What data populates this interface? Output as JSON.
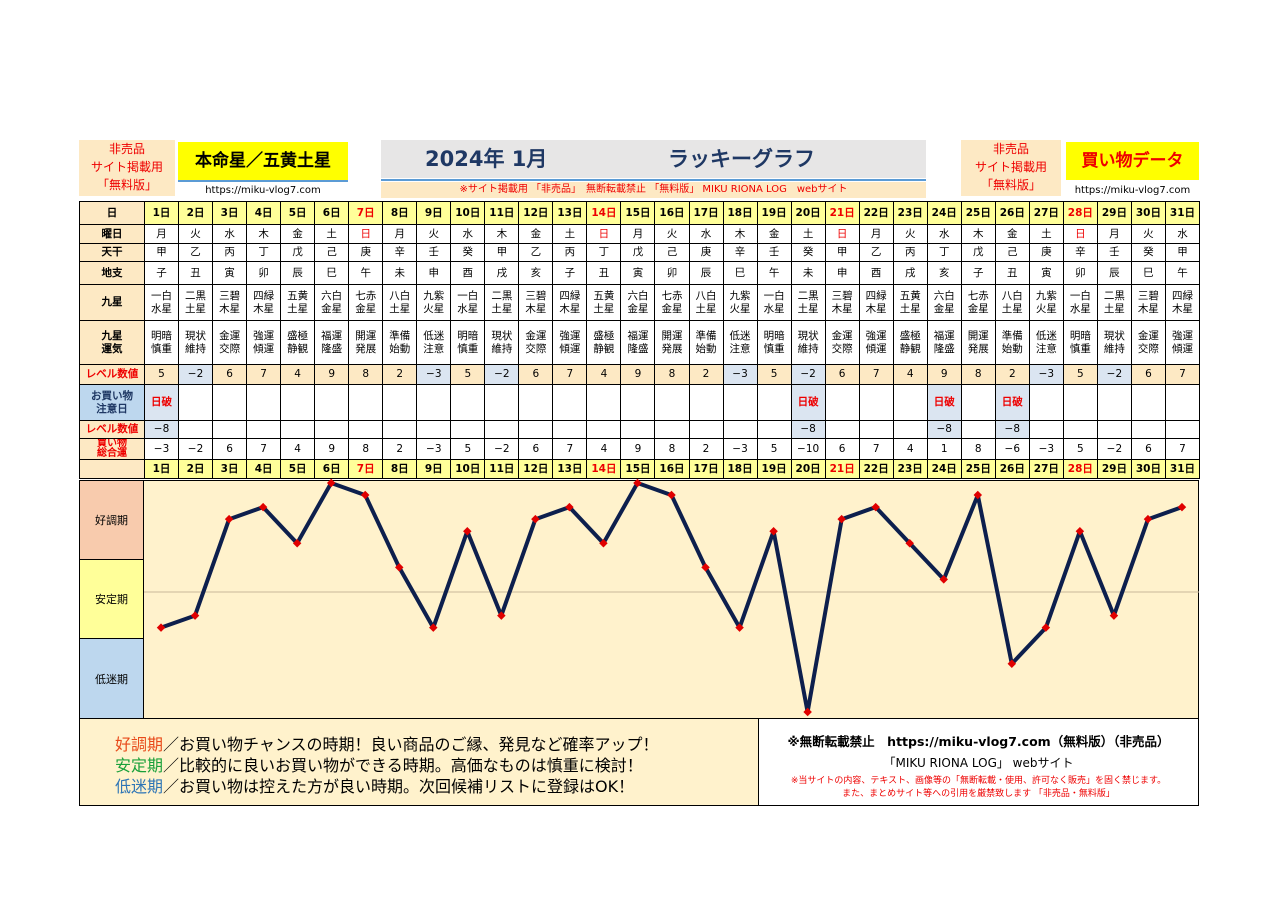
{
  "header": {
    "stamp_left": [
      "非売品",
      "サイト掲載用",
      "「無料版」"
    ],
    "star_title": "本命星／五黄土星",
    "url_left": "https://miku-vlog7.com",
    "main_title": "2024年 1月",
    "main_subtitle": "ラッキーグラフ",
    "notice": "※サイト掲載用 「非売品」　無断転載禁止 「無料版」 MIKU RIONA LOG　webサイト",
    "stamp_right": [
      "非売品",
      "サイト掲載用",
      "「無料版」"
    ],
    "data_title": "買い物データ",
    "url_right": "https://miku-vlog7.com"
  },
  "row_labels": {
    "day": "日",
    "weekday": "曜日",
    "tenkan": "天干",
    "chishi": "地支",
    "kyusei": [
      "九星"
    ],
    "luck": [
      "九星",
      "運気"
    ],
    "level": "レベル数値",
    "caution": [
      "お買い物",
      "注意日"
    ],
    "level2": "レベル数値",
    "total": [
      "買い物",
      "総合運"
    ]
  },
  "days": [
    "1日",
    "2日",
    "3日",
    "4日",
    "5日",
    "6日",
    "7日",
    "8日",
    "9日",
    "10日",
    "11日",
    "12日",
    "13日",
    "14日",
    "15日",
    "16日",
    "17日",
    "18日",
    "19日",
    "20日",
    "21日",
    "22日",
    "23日",
    "24日",
    "25日",
    "26日",
    "27日",
    "28日",
    "29日",
    "30日",
    "31日"
  ],
  "weekdays": [
    "月",
    "火",
    "水",
    "木",
    "金",
    "土",
    "日",
    "月",
    "火",
    "水",
    "木",
    "金",
    "土",
    "日",
    "月",
    "火",
    "水",
    "木",
    "金",
    "土",
    "日",
    "月",
    "火",
    "水",
    "木",
    "金",
    "土",
    "日",
    "月",
    "火",
    "水"
  ],
  "tenkan": [
    "甲",
    "乙",
    "丙",
    "丁",
    "戊",
    "己",
    "庚",
    "辛",
    "壬",
    "癸",
    "甲",
    "乙",
    "丙",
    "丁",
    "戊",
    "己",
    "庚",
    "辛",
    "壬",
    "癸",
    "甲",
    "乙",
    "丙",
    "丁",
    "戊",
    "己",
    "庚",
    "辛",
    "壬",
    "癸",
    "甲"
  ],
  "chishi": [
    "子",
    "丑",
    "寅",
    "卯",
    "辰",
    "巳",
    "午",
    "未",
    "申",
    "酉",
    "戌",
    "亥",
    "子",
    "丑",
    "寅",
    "卯",
    "辰",
    "巳",
    "午",
    "未",
    "申",
    "酉",
    "戌",
    "亥",
    "子",
    "丑",
    "寅",
    "卯",
    "辰",
    "巳",
    "午"
  ],
  "kyusei": [
    [
      "一白",
      "水星"
    ],
    [
      "二黒",
      "土星"
    ],
    [
      "三碧",
      "木星"
    ],
    [
      "四緑",
      "木星"
    ],
    [
      "五黄",
      "土星"
    ],
    [
      "六白",
      "金星"
    ],
    [
      "七赤",
      "金星"
    ],
    [
      "八白",
      "土星"
    ],
    [
      "九紫",
      "火星"
    ],
    [
      "一白",
      "水星"
    ],
    [
      "二黒",
      "土星"
    ],
    [
      "三碧",
      "木星"
    ],
    [
      "四緑",
      "木星"
    ],
    [
      "五黄",
      "土星"
    ],
    [
      "六白",
      "金星"
    ],
    [
      "七赤",
      "金星"
    ],
    [
      "八白",
      "土星"
    ],
    [
      "九紫",
      "火星"
    ],
    [
      "一白",
      "水星"
    ],
    [
      "二黒",
      "土星"
    ],
    [
      "三碧",
      "木星"
    ],
    [
      "四緑",
      "木星"
    ],
    [
      "五黄",
      "土星"
    ],
    [
      "六白",
      "金星"
    ],
    [
      "七赤",
      "金星"
    ],
    [
      "八白",
      "土星"
    ],
    [
      "九紫",
      "火星"
    ],
    [
      "一白",
      "水星"
    ],
    [
      "二黒",
      "土星"
    ],
    [
      "三碧",
      "木星"
    ],
    [
      "四緑",
      "木星"
    ]
  ],
  "luck": [
    [
      "明暗",
      "慎重"
    ],
    [
      "現状",
      "維持"
    ],
    [
      "金運",
      "交際"
    ],
    [
      "強運",
      "傾運"
    ],
    [
      "盛極",
      "静観"
    ],
    [
      "福運",
      "隆盛"
    ],
    [
      "開運",
      "発展"
    ],
    [
      "準備",
      "始動"
    ],
    [
      "低迷",
      "注意"
    ],
    [
      "明暗",
      "慎重"
    ],
    [
      "現状",
      "維持"
    ],
    [
      "金運",
      "交際"
    ],
    [
      "強運",
      "傾運"
    ],
    [
      "盛極",
      "静観"
    ],
    [
      "福運",
      "隆盛"
    ],
    [
      "開運",
      "発展"
    ],
    [
      "準備",
      "始動"
    ],
    [
      "低迷",
      "注意"
    ],
    [
      "明暗",
      "慎重"
    ],
    [
      "現状",
      "維持"
    ],
    [
      "金運",
      "交際"
    ],
    [
      "強運",
      "傾運"
    ],
    [
      "盛極",
      "静観"
    ],
    [
      "福運",
      "隆盛"
    ],
    [
      "開運",
      "発展"
    ],
    [
      "準備",
      "始動"
    ],
    [
      "低迷",
      "注意"
    ],
    [
      "明暗",
      "慎重"
    ],
    [
      "現状",
      "維持"
    ],
    [
      "金運",
      "交際"
    ],
    [
      "強運",
      "傾運"
    ]
  ],
  "levels_display": [
    "5",
    "−2",
    "6",
    "7",
    "4",
    "9",
    "8",
    "2",
    "−3",
    "5",
    "−2",
    "6",
    "7",
    "4",
    "9",
    "8",
    "2",
    "−3",
    "5",
    "−2",
    "6",
    "7",
    "4",
    "9",
    "8",
    "2",
    "−3",
    "5",
    "−2",
    "6",
    "7"
  ],
  "caution_days": [
    "日破",
    "",
    "",
    "",
    "",
    "",
    "",
    "",
    "",
    "",
    "",
    "",
    "",
    "",
    "",
    "",
    "",
    "",
    "",
    "日破",
    "",
    "",
    "",
    "日破",
    "",
    "日破",
    "",
    "",
    "",
    "",
    ""
  ],
  "level2_display": [
    "−8",
    "",
    "",
    "",
    "",
    "",
    "",
    "",
    "",
    "",
    "",
    "",
    "",
    "",
    "",
    "",
    "",
    "",
    "",
    "−8",
    "",
    "",
    "",
    "−8",
    "",
    "−8",
    "",
    "",
    "",
    "",
    ""
  ],
  "totals_display": [
    "−3",
    "−2",
    "6",
    "7",
    "4",
    "9",
    "8",
    "2",
    "−3",
    "5",
    "−2",
    "6",
    "7",
    "4",
    "9",
    "8",
    "2",
    "−3",
    "5",
    "−10",
    "6",
    "7",
    "4",
    "1",
    "8",
    "−6",
    "−3",
    "5",
    "−2",
    "6",
    "7"
  ],
  "chart_data": {
    "type": "line",
    "x": [
      "1日",
      "2日",
      "3日",
      "4日",
      "5日",
      "6日",
      "7日",
      "8日",
      "9日",
      "10日",
      "11日",
      "12日",
      "13日",
      "14日",
      "15日",
      "16日",
      "17日",
      "18日",
      "19日",
      "20日",
      "21日",
      "22日",
      "23日",
      "24日",
      "25日",
      "26日",
      "27日",
      "28日",
      "29日",
      "30日",
      "31日"
    ],
    "series": [
      {
        "values": [
          -3,
          -2,
          6,
          7,
          4,
          9,
          8,
          2,
          -3,
          5,
          -2,
          6,
          7,
          4,
          9,
          8,
          2,
          -3,
          5,
          -10,
          6,
          7,
          4,
          1,
          8,
          -6,
          -3,
          5,
          -2,
          6,
          7
        ]
      }
    ],
    "bands": [
      "好調期",
      "安定期",
      "低迷期"
    ],
    "ylim": [
      -10,
      9
    ],
    "line_color": "#0d1f4d",
    "marker_color": "#e00000",
    "grid": false
  },
  "legend": {
    "lines": [
      {
        "term": "好調期",
        "text": "／お買い物チャンスの時期！良い商品のご縁、発見など確率アップ！",
        "color": "#e84a1a"
      },
      {
        "term": "安定期",
        "text": "／比較的に良いお買い物ができる時期。高価なものは慎重に検討！",
        "color": "#1aa03a"
      },
      {
        "term": "低迷期",
        "text": "／お買い物は控えた方が良い時期。次回候補リストに登録はOK！",
        "color": "#2e75b6"
      }
    ],
    "copyright_title": "※無断転載禁止　https://miku-vlog7.com（無料版）（非売品）",
    "copyright_site": "「MIKU RIONA LOG」 webサイト",
    "copyright_note1": "※当サイトの内容、テキスト、画像等の「無断転載・使用、許可なく販売」を固く禁じます。",
    "copyright_note2": "また、まとめサイト等への引用を厳禁致します 「非売品・無料版」"
  },
  "colors": {
    "band_good": "#f8cbad",
    "band_stable": "#ffff99",
    "band_low": "#bdd7ee",
    "plot_bg": "#fff2cc",
    "stamp_bg": "#fde9c4",
    "title_box": "#e7e6e6"
  }
}
